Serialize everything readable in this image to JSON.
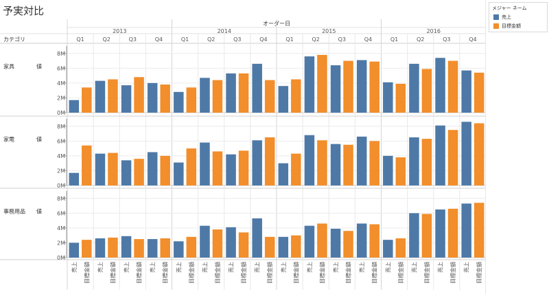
{
  "sheet": {
    "title": "予実対比"
  },
  "legend": {
    "title": "メジャー ネーム",
    "items": [
      {
        "label": "売上",
        "color": "#4e79a7"
      },
      {
        "label": "目標金額",
        "color": "#f28e2b"
      }
    ]
  },
  "chart_data": {
    "type": "bar",
    "title": "予実対比",
    "column_header": "オーダー日",
    "row_header": "カテゴリ",
    "years": [
      "2013",
      "2014",
      "2015",
      "2016"
    ],
    "quarters": [
      "Q1",
      "Q2",
      "Q3",
      "Q4"
    ],
    "measure_names": [
      "売上",
      "目標金額"
    ],
    "y_axis_label": "値",
    "y_ticks": [
      "0M",
      "2M",
      "4M",
      "6M",
      "8M"
    ],
    "ylim": [
      0,
      9
    ],
    "rows": [
      {
        "category": "家具",
        "series": [
          {
            "name": "売上",
            "values": [
              1.7,
              4.3,
              3.7,
              4.0,
              2.8,
              4.7,
              5.3,
              6.6,
              3.6,
              7.6,
              6.4,
              7.1,
              4.1,
              6.6,
              7.4,
              5.7
            ]
          },
          {
            "name": "目標金額",
            "values": [
              3.4,
              4.5,
              4.8,
              3.8,
              3.4,
              4.4,
              5.3,
              4.4,
              4.5,
              7.8,
              7.0,
              6.9,
              3.9,
              5.9,
              7.0,
              5.4
            ]
          }
        ]
      },
      {
        "category": "家電",
        "series": [
          {
            "name": "売上",
            "values": [
              1.7,
              4.3,
              3.4,
              4.5,
              3.1,
              5.8,
              4.2,
              6.1,
              3.0,
              6.8,
              5.6,
              6.6,
              4.0,
              6.5,
              8.1,
              8.6
            ]
          },
          {
            "name": "目標金額",
            "values": [
              5.4,
              4.4,
              3.6,
              4.0,
              5.0,
              4.6,
              4.7,
              6.5,
              4.3,
              6.1,
              5.5,
              6.0,
              3.8,
              6.3,
              7.5,
              8.4
            ]
          }
        ]
      },
      {
        "category": "事務用品",
        "series": [
          {
            "name": "売上",
            "values": [
              2.0,
              2.6,
              2.9,
              2.5,
              2.2,
              4.3,
              4.1,
              5.3,
              2.8,
              4.3,
              3.9,
              4.6,
              2.4,
              6.0,
              6.5,
              7.3
            ]
          },
          {
            "name": "目標金額",
            "values": [
              2.4,
              2.7,
              2.5,
              2.6,
              2.8,
              3.8,
              3.4,
              2.8,
              3.0,
              4.6,
              3.6,
              4.5,
              2.6,
              5.9,
              6.6,
              7.4
            ]
          }
        ]
      }
    ],
    "grid": true,
    "legend_position": "top-right"
  }
}
